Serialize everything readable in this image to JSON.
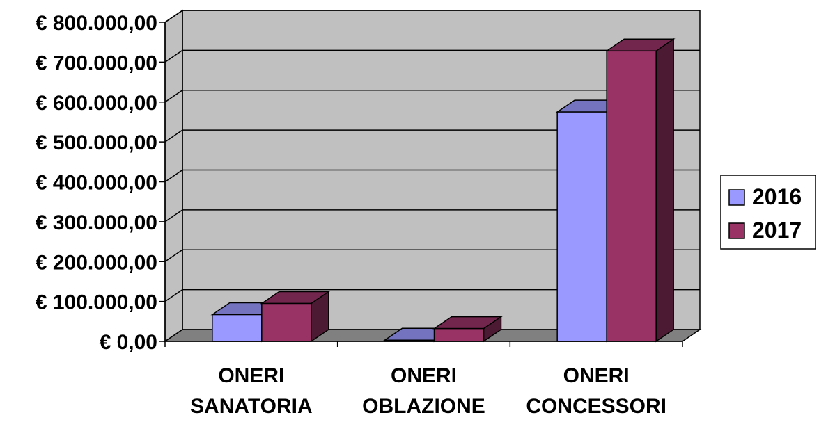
{
  "chart_data": {
    "type": "bar",
    "three_d": true,
    "categories": [
      [
        "ONERI",
        "SANATORIA"
      ],
      [
        "ONERI",
        "OBLAZIONE"
      ],
      [
        "ONERI",
        "CONCESSORI"
      ]
    ],
    "series": [
      {
        "name": "2016",
        "values": [
          67000,
          3000,
          575000
        ],
        "color": "#9999ff"
      },
      {
        "name": "2017",
        "values": [
          95000,
          32000,
          728000
        ],
        "color": "#993366"
      }
    ],
    "ylim": [
      0,
      800000
    ],
    "yticks": [
      0,
      100000,
      200000,
      300000,
      400000,
      500000,
      600000,
      700000,
      800000
    ],
    "ytick_labels": [
      "€ 0,00",
      "€ 100.000,00",
      "€ 200.000,00",
      "€ 300.000,00",
      "€ 400.000,00",
      "€ 500.000,00",
      "€ 600.000,00",
      "€ 700.000,00",
      "€ 800.000,00"
    ],
    "title": "",
    "xlabel": "",
    "ylabel": "",
    "grid": true,
    "legend_position": "right",
    "wall_color": "#c0c0c0",
    "floor_color": "#808080"
  }
}
